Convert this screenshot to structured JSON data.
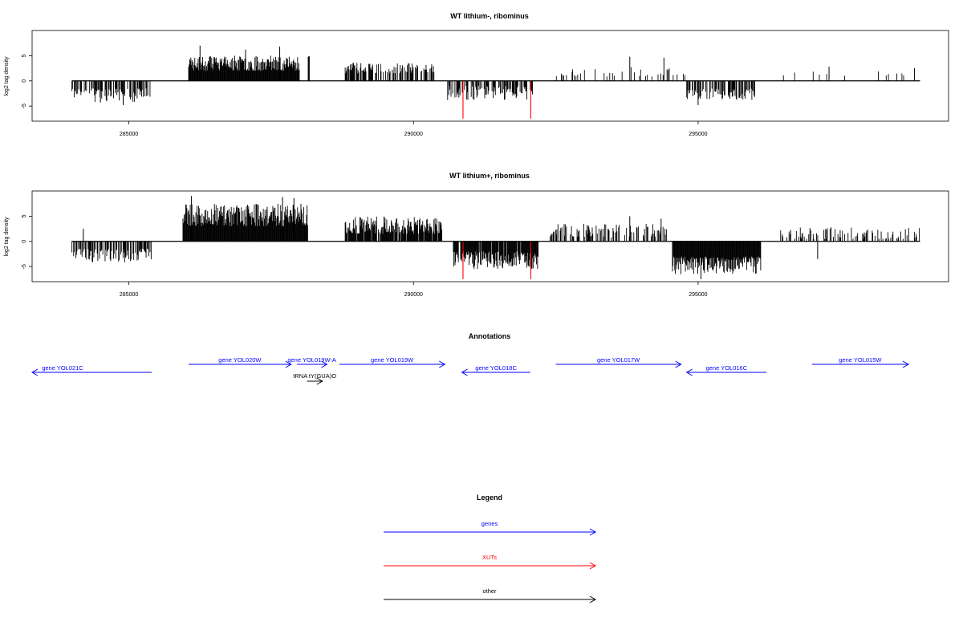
{
  "colors": {
    "gene": "#0000ff",
    "xut": "#ff0000",
    "other": "#000000",
    "density": "#000000",
    "density_highlight": "#ff0000"
  },
  "chart_data": [
    {
      "type": "bar",
      "title": "WT lithium-, ribominus",
      "ylabel": "log2 tag density",
      "xlim": [
        283300,
        299400
      ],
      "ylim": [
        -8,
        10
      ],
      "xticks": [
        285000,
        290000,
        295000
      ],
      "xtick_labels": [
        "285000",
        "290000",
        "295000"
      ],
      "yticks": [
        -5,
        0,
        5
      ],
      "ytick_labels": [
        "-5",
        "0",
        "5"
      ],
      "baseline_range": [
        284000,
        298900
      ],
      "segments": [
        {
          "start": 284000,
          "end": 285400,
          "sign": -1,
          "low": 1.5,
          "high": 4.2,
          "density": 0.55,
          "seed": 11
        },
        {
          "start": 286050,
          "end": 288000,
          "sign": 1,
          "low": 2.0,
          "high": 5.0,
          "density": 1.0,
          "seed": 23
        },
        {
          "start": 288150,
          "end": 288180,
          "sign": 1,
          "low": 4.5,
          "high": 5.3,
          "density": 0.6,
          "seed": 24
        },
        {
          "start": 288800,
          "end": 290400,
          "sign": 1,
          "low": 1.5,
          "high": 3.6,
          "density": 0.5,
          "seed": 37
        },
        {
          "start": 290600,
          "end": 292100,
          "sign": -1,
          "low": 1.0,
          "high": 3.8,
          "density": 0.5,
          "seed": 41
        },
        {
          "start": 292500,
          "end": 294800,
          "sign": 1,
          "low": 0.8,
          "high": 3.0,
          "density": 0.13,
          "seed": 53
        },
        {
          "start": 294800,
          "end": 296000,
          "sign": -1,
          "low": 1.5,
          "high": 3.8,
          "density": 0.6,
          "seed": 61
        },
        {
          "start": 296400,
          "end": 298900,
          "sign": 1,
          "low": 0.8,
          "high": 2.0,
          "density": 0.04,
          "seed": 71
        }
      ],
      "spikes": [
        {
          "x": 287650,
          "value": 6.8
        },
        {
          "x": 287050,
          "value": 6.2
        },
        {
          "x": 286250,
          "value": 7.0
        },
        {
          "x": 293800,
          "value": 4.8
        },
        {
          "x": 294400,
          "value": 4.6
        },
        {
          "x": 295000,
          "value": -4.8
        },
        {
          "x": 284500,
          "value": -4.3
        },
        {
          "x": 284900,
          "value": -4.8
        },
        {
          "x": 297300,
          "value": 2.8
        },
        {
          "x": 298800,
          "value": 2.5
        }
      ],
      "highlight_bars": [
        {
          "x": 290870,
          "value": -7.5
        },
        {
          "x": 292060,
          "value": -7.5
        }
      ]
    },
    {
      "type": "bar",
      "title": "WT lithium+, ribominus",
      "ylabel": "log2 tag density",
      "xlim": [
        283300,
        299400
      ],
      "ylim": [
        -8,
        10
      ],
      "xticks": [
        285000,
        290000,
        295000
      ],
      "xtick_labels": [
        "285000",
        "290000",
        "295000"
      ],
      "yticks": [
        -5,
        0,
        5
      ],
      "ytick_labels": [
        "-5",
        "0",
        "5"
      ],
      "baseline_range": [
        284000,
        298900
      ],
      "segments": [
        {
          "start": 284000,
          "end": 285400,
          "sign": -1,
          "low": 1.5,
          "high": 4.2,
          "density": 0.55,
          "seed": 111
        },
        {
          "start": 285950,
          "end": 288150,
          "sign": 1,
          "low": 3.0,
          "high": 7.5,
          "density": 1.0,
          "seed": 123
        },
        {
          "start": 288800,
          "end": 290500,
          "sign": 1,
          "low": 1.5,
          "high": 5.0,
          "density": 0.9,
          "seed": 137
        },
        {
          "start": 290700,
          "end": 292200,
          "sign": -1,
          "low": 2.0,
          "high": 5.5,
          "density": 0.9,
          "seed": 141
        },
        {
          "start": 292400,
          "end": 294500,
          "sign": 1,
          "low": 0.8,
          "high": 3.5,
          "density": 0.45,
          "seed": 153
        },
        {
          "start": 294550,
          "end": 296100,
          "sign": -1,
          "low": 3.0,
          "high": 6.5,
          "density": 1.0,
          "seed": 161
        },
        {
          "start": 296450,
          "end": 298900,
          "sign": 1,
          "low": 0.5,
          "high": 2.8,
          "density": 0.35,
          "seed": 171
        }
      ],
      "spikes": [
        {
          "x": 286100,
          "value": 9.0
        },
        {
          "x": 287700,
          "value": 8.8
        },
        {
          "x": 287900,
          "value": 8.6
        },
        {
          "x": 284200,
          "value": 2.5
        },
        {
          "x": 295050,
          "value": -7.5
        },
        {
          "x": 293800,
          "value": 5.0
        },
        {
          "x": 294350,
          "value": 4.5
        },
        {
          "x": 297100,
          "value": -3.5
        }
      ],
      "highlight_bars": [
        {
          "x": 290870,
          "value": -7.5
        },
        {
          "x": 292060,
          "value": -7.5
        }
      ]
    }
  ],
  "annotations": {
    "title": "Annotations",
    "features": [
      {
        "label": "gene YOL021C",
        "type": "gene",
        "start": 283300,
        "end": 285400,
        "strand": "-",
        "row": 1
      },
      {
        "label": "gene YOL020W",
        "type": "gene",
        "start": 286050,
        "end": 287850,
        "strand": "+",
        "row": 0
      },
      {
        "label": "gene YOL019W-A",
        "type": "gene",
        "start": 287950,
        "end": 288480,
        "strand": "+",
        "row": 0
      },
      {
        "label": "gene YOL019W",
        "type": "gene",
        "start": 288700,
        "end": 290550,
        "strand": "+",
        "row": 0
      },
      {
        "label": "gene YOL018C",
        "type": "gene",
        "start": 290850,
        "end": 292050,
        "strand": "-",
        "row": 1
      },
      {
        "label": "gene YOL017W",
        "type": "gene",
        "start": 292500,
        "end": 294700,
        "strand": "+",
        "row": 0
      },
      {
        "label": "gene YOL016C",
        "type": "gene",
        "start": 294800,
        "end": 296200,
        "strand": "-",
        "row": 1
      },
      {
        "label": "gene YOL015W",
        "type": "gene",
        "start": 297000,
        "end": 298700,
        "strand": "+",
        "row": 0
      },
      {
        "label": "tRNA tY(GUA)O",
        "type": "other",
        "start": 288130,
        "end": 288400,
        "strand": "+",
        "row": 2
      }
    ]
  },
  "legend": {
    "title": "Legend",
    "items": [
      {
        "label": "genes",
        "type": "gene"
      },
      {
        "label": "XUTs",
        "type": "xut"
      },
      {
        "label": "other",
        "type": "other"
      }
    ]
  }
}
